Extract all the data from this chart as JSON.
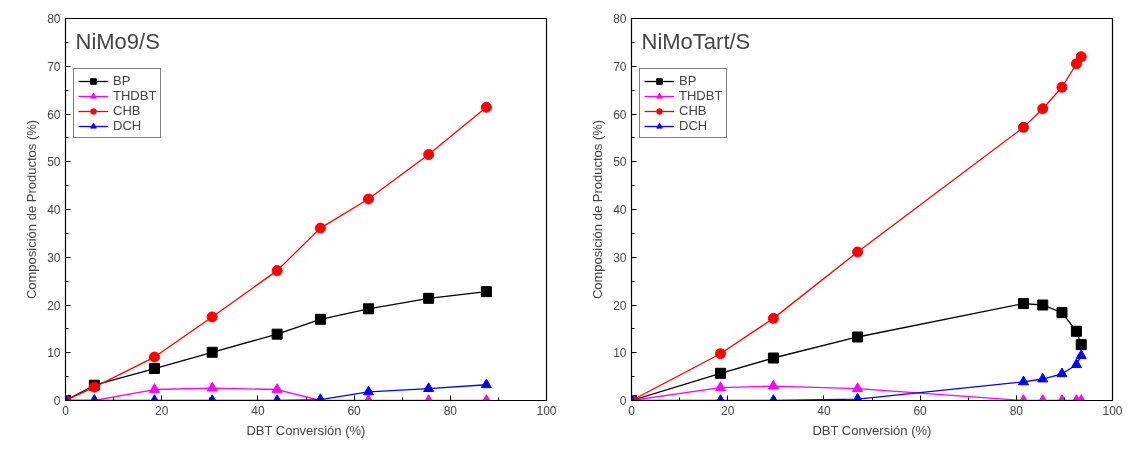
{
  "chart_data": [
    {
      "type": "line",
      "title": "NiMo9/S",
      "xlabel": "DBT Conversión (%)",
      "ylabel": "Composición de Productos (%)",
      "xlim": [
        0,
        100
      ],
      "ylim": [
        0,
        80
      ],
      "xticks": [
        0,
        20,
        40,
        60,
        80,
        100
      ],
      "yticks": [
        0,
        10,
        20,
        30,
        40,
        50,
        60,
        70,
        80
      ],
      "grid": false,
      "legend": "top left",
      "x": [
        0,
        6,
        18.5,
        30.5,
        44,
        53,
        63,
        75.5,
        87.5
      ],
      "series": [
        {
          "name": "BP",
          "color": "#000000",
          "marker": "square",
          "values": [
            0,
            3.2,
            6.7,
            10.1,
            13.9,
            17,
            19.2,
            21.4,
            22.8
          ]
        },
        {
          "name": "THDBT",
          "color": "#ff00ff",
          "marker": "triangle",
          "values": [
            0,
            0,
            2.3,
            2.6,
            2.3,
            0,
            0,
            0,
            0
          ]
        },
        {
          "name": "CHB",
          "color": "#ff0000",
          "marker": "circle",
          "values": [
            0,
            2.8,
            9.1,
            17.5,
            27.2,
            36.1,
            42.2,
            51.5,
            61.4
          ]
        },
        {
          "name": "DCH",
          "color": "#0000ff",
          "marker": "triangle",
          "values": [
            0,
            0,
            0,
            0,
            0,
            0.2,
            1.8,
            2.5,
            3.3
          ]
        }
      ]
    },
    {
      "type": "line",
      "title": "NiMoTart/S",
      "xlabel": "DBT Conversión (%)",
      "ylabel": "Composición de Productos (%)",
      "xlim": [
        0,
        100
      ],
      "ylim": [
        0,
        80
      ],
      "xticks": [
        0,
        20,
        40,
        60,
        80,
        100
      ],
      "yticks": [
        0,
        10,
        20,
        30,
        40,
        50,
        60,
        70,
        80
      ],
      "grid": false,
      "legend": "top left",
      "x": [
        0,
        18.5,
        29.5,
        47,
        81.5,
        85.5,
        89.5,
        92.5,
        93.5
      ],
      "series": [
        {
          "name": "BP",
          "color": "#000000",
          "marker": "square",
          "values": [
            0,
            5.7,
            8.9,
            13.3,
            20.3,
            20.0,
            18.4,
            14.5,
            11.7
          ]
        },
        {
          "name": "THDBT",
          "color": "#ff00ff",
          "marker": "triangle",
          "values": [
            0,
            2.7,
            3.0,
            2.5,
            0,
            0,
            0,
            0,
            0
          ]
        },
        {
          "name": "CHB",
          "color": "#ff0000",
          "marker": "circle",
          "values": [
            0,
            9.8,
            17.2,
            31.1,
            57.2,
            61.1,
            65.6,
            70.5,
            72
          ]
        },
        {
          "name": "DCH",
          "color": "#0000ff",
          "marker": "triangle",
          "values": [
            0,
            0,
            0,
            0.3,
            3.9,
            4.5,
            5.6,
            7.5,
            9.4
          ]
        }
      ]
    }
  ]
}
